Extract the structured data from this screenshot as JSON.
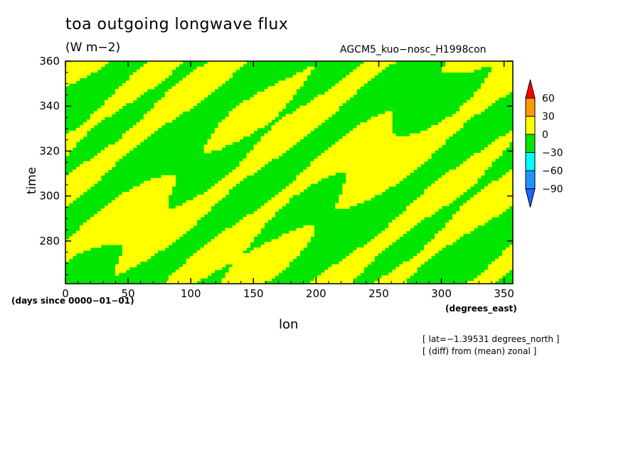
{
  "chart_data": {
    "type": "heatmap",
    "title": "toa outgoing longwave flux",
    "units": "(W m−2)",
    "dataset": "AGCM5_kuo−nosc_H1998con",
    "xlabel": "lon",
    "xunits": "(degrees_east)",
    "ylabel": "time",
    "yunits": "(days since 0000−01−01)",
    "xlim": [
      0,
      357
    ],
    "ylim": [
      261,
      360
    ],
    "x_ticks": [
      0,
      50,
      100,
      150,
      200,
      250,
      300,
      350
    ],
    "y_ticks": [
      280,
      300,
      320,
      340,
      360
    ],
    "colorbar": {
      "levels": [
        -90,
        -60,
        -30,
        0,
        30,
        60
      ],
      "labels": [
        "60",
        "30",
        "0",
        "−30",
        "−60",
        "−90"
      ],
      "colors": {
        "below_-90": "#1e64ff",
        "-90_-60": "#1e96ff",
        "-60_-30": "#00ffff",
        "-30_0": "#00e600",
        "0_30": "#ffff00",
        "30_60": "#ff9900",
        "above_60": "#ff0000"
      }
    },
    "field_description": "Values alternate between the -30..0 (green) and 0..30 (yellow) bands in streaks tilted eastward with time"
  },
  "notes": {
    "line1": "[ lat=−1.39531 degrees_north ]",
    "line2": "[ (diff) from (mean) zonal ]"
  }
}
